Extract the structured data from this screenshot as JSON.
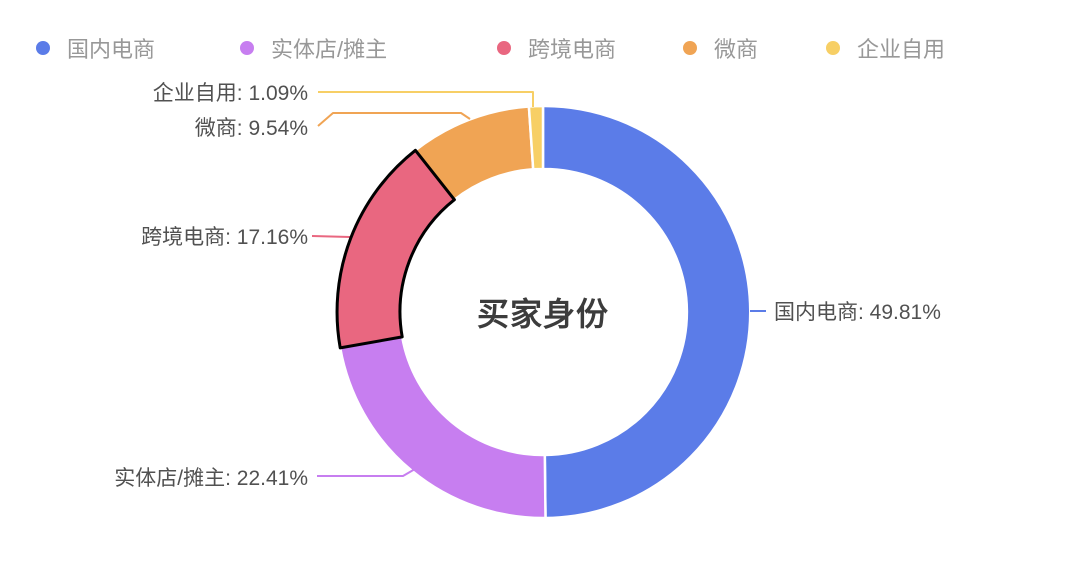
{
  "background_color": "#ffffff",
  "title": "买家身份",
  "legend": {
    "position": "top",
    "items": [
      {
        "label": "国内电商"
      },
      {
        "label": "实体店/摊主"
      },
      {
        "label": "跨境电商"
      },
      {
        "label": "微商"
      },
      {
        "label": "企业自用"
      }
    ]
  },
  "chart_data": {
    "type": "pie",
    "subtype": "donut",
    "title": "买家身份",
    "legend_position": "top",
    "start_angle_deg": 0,
    "direction": "clockwise",
    "segments": [
      {
        "name": "国内电商",
        "percent": 49.81,
        "label": "国内电商: 49.81%",
        "color": "#5B7CE8",
        "emphasized": false
      },
      {
        "name": "实体店/摊主",
        "percent": 22.41,
        "label": "实体店/摊主: 22.41%",
        "color": "#C77EF0",
        "emphasized": false
      },
      {
        "name": "跨境电商",
        "percent": 17.16,
        "label": "跨境电商: 17.16%",
        "color": "#E96780",
        "emphasized": true
      },
      {
        "name": "微商",
        "percent": 9.54,
        "label": "微商: 9.54%",
        "color": "#F0A454",
        "emphasized": false
      },
      {
        "name": "企业自用",
        "percent": 1.09,
        "label": "企业自用: 1.09%",
        "color": "#F7CF65",
        "emphasized": false
      }
    ],
    "emphasis_outline_color": "#000000",
    "slice_gap_color": "#ffffff"
  }
}
